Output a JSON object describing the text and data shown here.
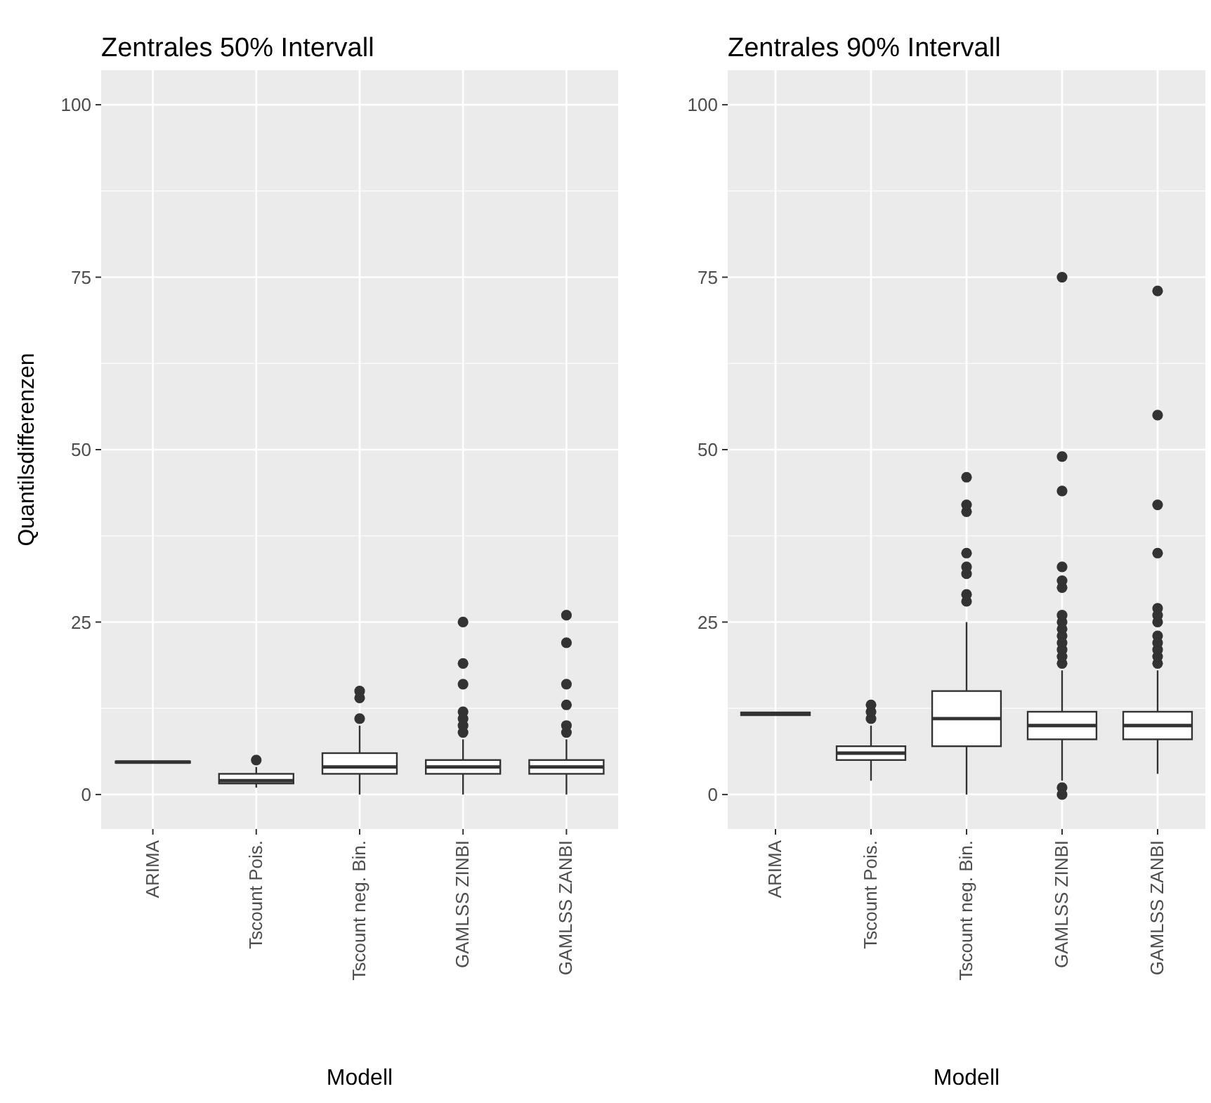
{
  "chart_data": [
    {
      "type": "box",
      "title": "Zentrales 50% Intervall",
      "xlabel": "Modell",
      "ylabel": "Quantilsdifferenzen",
      "categories": [
        "ARIMA",
        "Tscount Pois.",
        "Tscount neg. Bin.",
        "GAMLSS ZINBI",
        "GAMLSS ZANBI"
      ],
      "ylim": [
        -5,
        105
      ],
      "yticks": [
        0,
        25,
        50,
        75,
        100
      ],
      "grid": true,
      "boxes": [
        {
          "low": 4.6,
          "q1": 4.6,
          "median": 4.7,
          "q3": 4.8,
          "high": 4.8
        },
        {
          "low": 1,
          "q1": 1.6,
          "median": 2,
          "q3": 3,
          "high": 4,
          "outliers": [
            5
          ]
        },
        {
          "low": 0,
          "q1": 3,
          "median": 4,
          "q3": 6,
          "high": 10,
          "outliers": [
            11,
            14,
            15
          ]
        },
        {
          "low": 0,
          "q1": 3,
          "median": 4,
          "q3": 5,
          "high": 8,
          "outliers": [
            9,
            10,
            11,
            12,
            16,
            19,
            25
          ]
        },
        {
          "low": 0,
          "q1": 3,
          "median": 4,
          "q3": 5,
          "high": 8,
          "outliers": [
            9,
            10,
            13,
            16,
            22,
            26
          ]
        }
      ]
    },
    {
      "type": "box",
      "title": "Zentrales 90% Intervall",
      "xlabel": "Modell",
      "categories": [
        "ARIMA",
        "Tscount Pois.",
        "Tscount neg. Bin.",
        "GAMLSS ZINBI",
        "GAMLSS ZANBI"
      ],
      "ylim": [
        -5,
        105
      ],
      "yticks": [
        0,
        25,
        50,
        75,
        100
      ],
      "grid": true,
      "boxes": [
        {
          "low": 11.4,
          "q1": 11.5,
          "median": 11.7,
          "q3": 11.9,
          "high": 12
        },
        {
          "low": 2,
          "q1": 5,
          "median": 6,
          "q3": 7,
          "high": 10,
          "outliers": [
            11,
            12,
            13
          ]
        },
        {
          "low": 0,
          "q1": 7,
          "median": 11,
          "q3": 15,
          "high": 25,
          "outliers": [
            28,
            29,
            32,
            33,
            35,
            41,
            42,
            46
          ]
        },
        {
          "low": 2,
          "q1": 8,
          "median": 10,
          "q3": 12,
          "high": 18,
          "outliers": [
            0,
            1,
            19,
            20,
            21,
            22,
            23,
            24,
            25,
            26,
            30,
            31,
            33,
            44,
            49,
            75
          ]
        },
        {
          "low": 3,
          "q1": 8,
          "median": 10,
          "q3": 12,
          "high": 18,
          "outliers": [
            19,
            20,
            21,
            22,
            23,
            25,
            26,
            27,
            35,
            42,
            55,
            73
          ]
        }
      ]
    }
  ]
}
